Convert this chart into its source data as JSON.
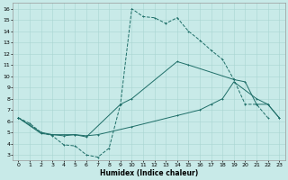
{
  "xlabel": "Humidex (Indice chaleur)",
  "bg_color": "#c8eae8",
  "line_color": "#1e6e68",
  "grid_color": "#a8d5d2",
  "xlim": [
    -0.5,
    23.5
  ],
  "ylim": [
    2.5,
    16.5
  ],
  "xticks": [
    0,
    1,
    2,
    3,
    4,
    5,
    6,
    7,
    8,
    9,
    10,
    11,
    12,
    13,
    14,
    15,
    16,
    17,
    18,
    19,
    20,
    21,
    22,
    23
  ],
  "yticks": [
    3,
    4,
    5,
    6,
    7,
    8,
    9,
    10,
    11,
    12,
    13,
    14,
    15,
    16
  ],
  "curve1_x": [
    0,
    1,
    2,
    3,
    4,
    5,
    6,
    7,
    8,
    9,
    10,
    11,
    12,
    13,
    14,
    15,
    16,
    17,
    18,
    19,
    20,
    21,
    22
  ],
  "curve1_y": [
    6.3,
    5.8,
    5.0,
    4.7,
    3.9,
    3.8,
    3.0,
    2.8,
    3.6,
    7.5,
    16.0,
    15.3,
    15.2,
    14.7,
    15.2,
    14.0,
    13.2,
    12.3,
    11.5,
    9.7,
    7.5,
    7.5,
    6.3
  ],
  "curve2_x": [
    0,
    2,
    3,
    5,
    6,
    9,
    10,
    14,
    15,
    19,
    20,
    21,
    22,
    23
  ],
  "curve2_y": [
    6.3,
    5.0,
    4.8,
    4.8,
    4.6,
    7.5,
    8.0,
    11.3,
    11.0,
    9.7,
    9.5,
    7.5,
    7.5,
    6.3
  ],
  "curve3_x": [
    0,
    2,
    3,
    4,
    5,
    6,
    7,
    10,
    14,
    16,
    17,
    18,
    19,
    21,
    22,
    23
  ],
  "curve3_y": [
    6.3,
    4.9,
    4.8,
    4.7,
    4.8,
    4.7,
    4.8,
    5.5,
    6.5,
    7.0,
    7.5,
    8.0,
    9.5,
    8.0,
    7.5,
    6.3
  ]
}
